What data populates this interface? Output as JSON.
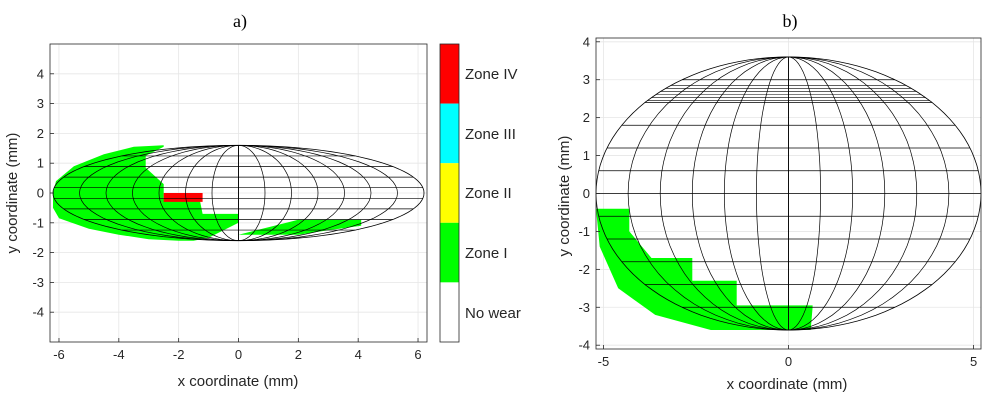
{
  "figure": {
    "panels": [
      {
        "label": "a)",
        "xlabel": "x coordinate (mm)",
        "ylabel": "y coordinate (mm)",
        "xticks": [
          "-6",
          "-4",
          "-2",
          "0",
          "2",
          "4",
          "6"
        ],
        "yticks": [
          "4",
          "3",
          "2",
          "1",
          "0",
          "-1",
          "-2",
          "-3",
          "-4"
        ]
      },
      {
        "label": "b)",
        "xlabel": "x coordinate (mm)",
        "ylabel": "y coordinate (mm)",
        "xticks": [
          "-5",
          "0",
          "5"
        ],
        "yticks": [
          "4",
          "3",
          "2",
          "1",
          "0",
          "-1",
          "-2",
          "-3",
          "-4"
        ]
      }
    ],
    "colorbar": {
      "labels": [
        "Zone IV",
        "Zone III",
        "Zone II",
        "Zone I",
        "No wear"
      ],
      "colors": [
        "#ff0000",
        "#00ffff",
        "#ffff00",
        "#00ff00",
        "#ffffff"
      ]
    }
  },
  "chart_data": [
    {
      "type": "heatmap",
      "title": "a)",
      "xlabel": "x coordinate (mm)",
      "ylabel": "y coordinate (mm)",
      "xlim": [
        -6.3,
        6.3
      ],
      "ylim": [
        -5,
        5
      ],
      "grid": true,
      "ellipse": {
        "a": 6.2,
        "b": 1.6,
        "x_columns": 14,
        "y_rows": 9
      },
      "zones": [
        {
          "zone": "Zone I",
          "color": "#00ff00",
          "polygon": [
            [
              -6.2,
              0
            ],
            [
              -6.2,
              -0.5
            ],
            [
              -6.0,
              -0.85
            ],
            [
              -5.0,
              -1.2
            ],
            [
              -4.0,
              -1.4
            ],
            [
              -3.0,
              -1.55
            ],
            [
              -2.0,
              -1.6
            ],
            [
              -1.5,
              -1.6
            ],
            [
              -1.0,
              -1.5
            ],
            [
              0.0,
              -1.4
            ],
            [
              0.8,
              -1.2
            ],
            [
              2.0,
              -0.9
            ],
            [
              4.1,
              -0.9
            ],
            [
              4.1,
              -1.1
            ],
            [
              3.0,
              -1.25
            ],
            [
              2.0,
              -1.4
            ],
            [
              0.0,
              -1.4
            ],
            [
              -1.0,
              -1.5
            ],
            [
              0,
              -1.0
            ],
            [
              0.0,
              -0.7
            ],
            [
              -1.2,
              -0.7
            ],
            [
              -1.3,
              -0.2
            ],
            [
              -2.5,
              -0.2
            ],
            [
              -2.5,
              0.3
            ],
            [
              -3.1,
              0.85
            ],
            [
              -3.1,
              1.25
            ],
            [
              -2.5,
              1.55
            ],
            [
              -2.5,
              1.6
            ],
            [
              -3.5,
              1.55
            ],
            [
              -4.5,
              1.3
            ],
            [
              -5.5,
              0.9
            ],
            [
              -6.1,
              0.4
            ]
          ]
        },
        {
          "zone": "Zone IV",
          "color": "#ff0000",
          "polygon": [
            [
              -2.5,
              0
            ],
            [
              -1.2,
              0
            ],
            [
              -1.2,
              -0.3
            ],
            [
              -2.5,
              -0.3
            ]
          ]
        }
      ]
    },
    {
      "type": "heatmap",
      "title": "b)",
      "xlabel": "x coordinate (mm)",
      "ylabel": "y coordinate (mm)",
      "xlim": [
        -5.2,
        5.2
      ],
      "ylim": [
        -4.1,
        4.1
      ],
      "grid": true,
      "ellipse": {
        "a": 5.2,
        "b": 3.6,
        "x_columns": 12,
        "y_rows": 12
      },
      "zones": [
        {
          "zone": "Zone I",
          "color": "#00ff00",
          "polygon": [
            [
              -5.2,
              -0.4
            ],
            [
              -4.3,
              -0.4
            ],
            [
              -4.3,
              -1.0
            ],
            [
              -3.7,
              -1.7
            ],
            [
              -2.6,
              -1.7
            ],
            [
              -2.6,
              -2.3
            ],
            [
              -1.4,
              -2.3
            ],
            [
              -1.4,
              -2.95
            ],
            [
              0.65,
              -2.95
            ],
            [
              0.65,
              -3.0
            ],
            [
              0.6,
              -3.6
            ],
            [
              -2.1,
              -3.6
            ],
            [
              -3.6,
              -3.2
            ],
            [
              -4.6,
              -2.5
            ],
            [
              -5.1,
              -1.4
            ]
          ]
        }
      ]
    }
  ]
}
